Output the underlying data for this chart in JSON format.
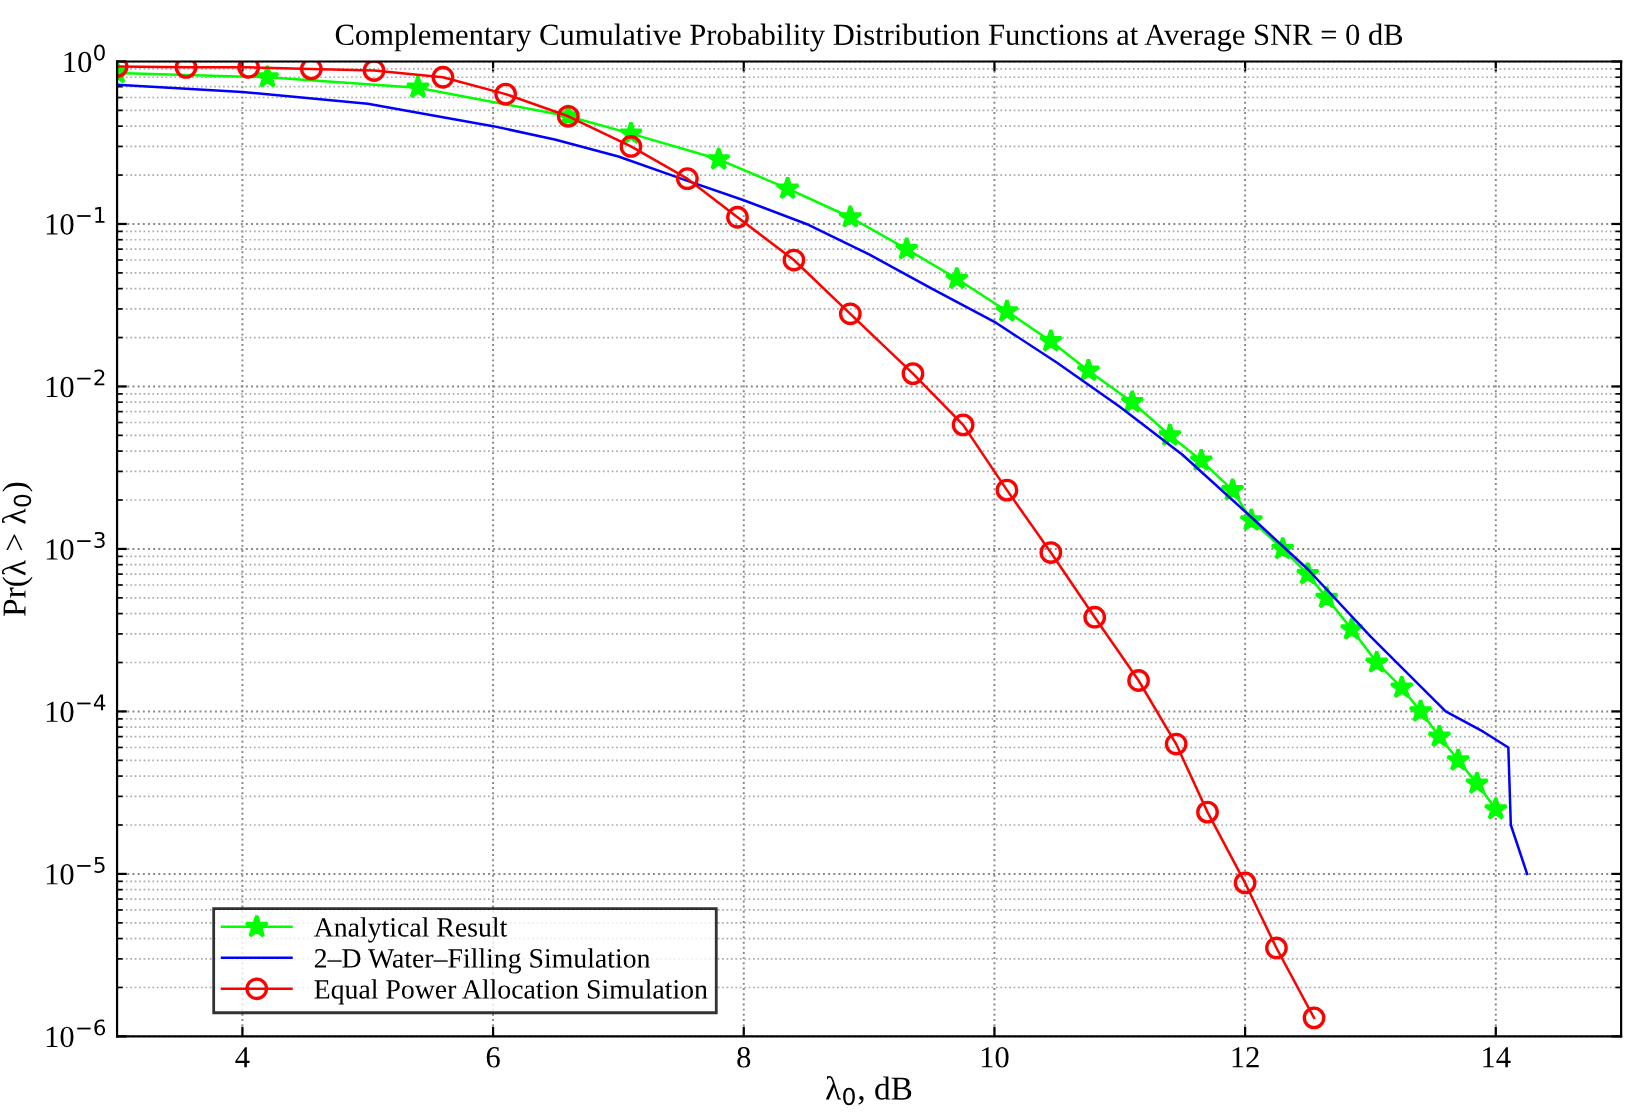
{
  "chart_data": {
    "type": "line",
    "title": "Complementary Cumulative Probability Distribution Functions at Average SNR = 0 dB",
    "xlabel": "λ$_{0}$, dB",
    "ylabel": "Pr(λ > λ$_{0}$)",
    "log": "y",
    "xlim": [
      3,
      15
    ],
    "xticks": [
      4,
      6,
      8,
      10,
      12,
      14
    ],
    "ylim": [
      1e-06,
      1
    ],
    "yticks": [
      {
        "value": 1e-06,
        "label": "10$^{−6}$"
      },
      {
        "value": 1e-05,
        "label": "10$^{−5}$"
      },
      {
        "value": 0.0001,
        "label": "10$^{−4}$"
      },
      {
        "value": 0.001,
        "label": "10$^{−3}$"
      },
      {
        "value": 0.01,
        "label": "10$^{−2}$"
      },
      {
        "value": 0.1,
        "label": "10$^{−1}$"
      },
      {
        "value": 1,
        "label": "10$^{0}$"
      }
    ],
    "grid": true,
    "legend": "bottom left",
    "series": [
      {
        "name": "Analytical Result",
        "color": "#00ff00",
        "marker": "star",
        "x": [
          3.0,
          4.2,
          5.4,
          6.6,
          7.1,
          7.8,
          8.35,
          8.85,
          9.3,
          9.7,
          10.1,
          10.45,
          10.75,
          11.1,
          11.4,
          11.65,
          11.9,
          12.05,
          12.3,
          12.5,
          12.65,
          12.85,
          13.05,
          13.25,
          13.4,
          13.55,
          13.7,
          13.85,
          14.0
        ],
        "values": [
          0.85,
          0.8,
          0.69,
          0.46,
          0.36,
          0.25,
          0.165,
          0.11,
          0.07,
          0.046,
          0.029,
          0.019,
          0.0125,
          0.008,
          0.005,
          0.0035,
          0.0023,
          0.0015,
          0.001,
          0.0007,
          0.0005,
          0.00032,
          0.0002,
          0.00014,
          0.0001,
          7e-05,
          5e-05,
          3.6e-05,
          2.5e-05
        ]
      },
      {
        "name": "2–D Water–Filling Simulation",
        "color": "#0000ff",
        "marker": "none",
        "x": [
          3.0,
          4.0,
          5.0,
          6.0,
          6.5,
          7.0,
          7.5,
          8.0,
          8.5,
          9.0,
          9.5,
          10.0,
          10.5,
          11.0,
          11.5,
          12.0,
          12.5,
          13.0,
          13.3,
          13.6,
          13.9,
          14.1,
          14.12,
          14.25
        ],
        "values": [
          0.72,
          0.65,
          0.55,
          0.4,
          0.33,
          0.26,
          0.19,
          0.14,
          0.1,
          0.065,
          0.04,
          0.025,
          0.014,
          0.0075,
          0.0038,
          0.0017,
          0.00075,
          0.00029,
          0.00017,
          0.0001,
          7.5e-05,
          6e-05,
          2e-05,
          1e-05
        ]
      },
      {
        "name": "Equal Power Allocation Simulation",
        "color": "#ff0000",
        "marker": "circle",
        "x": [
          3.0,
          3.55,
          4.05,
          4.55,
          5.05,
          5.6,
          6.1,
          6.6,
          7.1,
          7.55,
          7.95,
          8.4,
          8.85,
          9.35,
          9.75,
          10.1,
          10.45,
          10.8,
          11.15,
          11.45,
          11.7,
          12.0,
          12.25,
          12.55
        ],
        "values": [
          0.93,
          0.92,
          0.92,
          0.9,
          0.88,
          0.8,
          0.63,
          0.46,
          0.3,
          0.19,
          0.11,
          0.06,
          0.028,
          0.012,
          0.0058,
          0.0023,
          0.00095,
          0.00038,
          0.000155,
          6.3e-05,
          2.4e-05,
          8.8e-06,
          3.5e-06,
          1.3e-06
        ]
      }
    ]
  }
}
